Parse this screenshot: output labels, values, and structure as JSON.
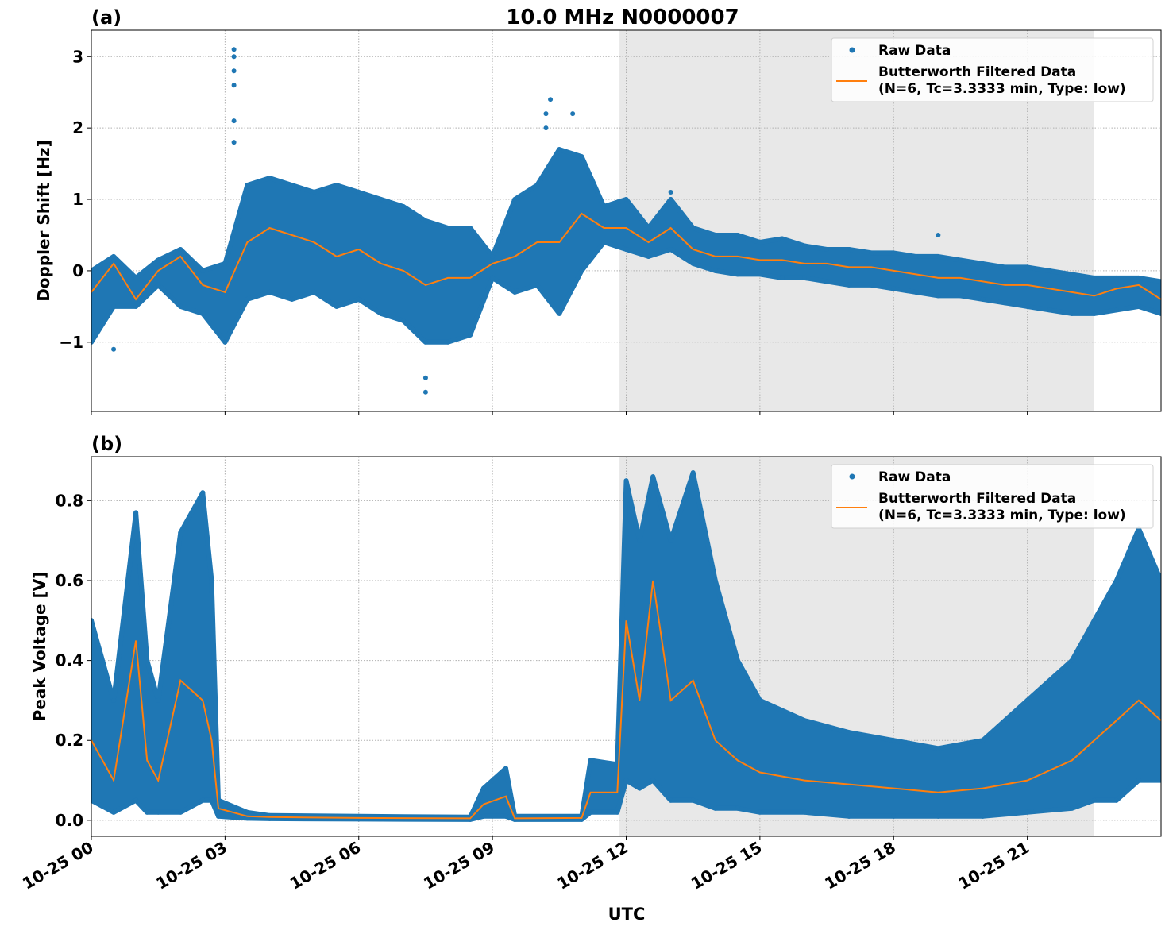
{
  "title": "10.0 MHz N0000007",
  "xlabel": "UTC",
  "x_tick_labels": [
    "10-25 00",
    "10-25 03",
    "10-25 06",
    "10-25 09",
    "10-25 12",
    "10-25 15",
    "10-25 18",
    "10-25 21"
  ],
  "colors": {
    "raw": "#1f77b4",
    "filtered": "#ff7f0e",
    "shade": "#e8e8e8"
  },
  "chart_data": [
    {
      "type": "scatter+line",
      "panel_label": "(a)",
      "ylabel": "Doppler Shift [Hz]",
      "xlim_hours": [
        0,
        24
      ],
      "ylim": [
        -1.97,
        3.37
      ],
      "y_ticks": [
        -1,
        0,
        1,
        2,
        3
      ],
      "y_tick_labels": [
        "−1",
        "0",
        "1",
        "2",
        "3"
      ],
      "grid": true,
      "shaded_span_hours": [
        11.85,
        22.5
      ],
      "legend": {
        "position": "top-right",
        "raw": "Raw Data",
        "filtered_line1": "Butterworth Filtered Data",
        "filtered_line2": "(N=6, Tc=3.3333 min, Type: low)"
      },
      "x_hours": [
        0,
        0.5,
        1,
        1.5,
        2,
        2.5,
        3,
        3.5,
        4,
        4.5,
        5,
        5.5,
        6,
        6.5,
        7,
        7.5,
        8,
        8.5,
        9,
        9.5,
        10,
        10.5,
        11,
        11.5,
        12,
        12.5,
        13,
        13.5,
        14,
        14.5,
        15,
        15.5,
        16,
        16.5,
        17,
        17.5,
        18,
        18.5,
        19,
        19.5,
        20,
        20.5,
        21,
        21.5,
        22,
        22.5,
        23,
        23.5,
        24
      ],
      "filtered": [
        -0.3,
        0.1,
        -0.4,
        0.0,
        0.2,
        -0.2,
        -0.3,
        0.4,
        0.6,
        0.5,
        0.4,
        0.2,
        0.3,
        0.1,
        0.0,
        -0.2,
        -0.1,
        -0.1,
        0.1,
        0.2,
        0.4,
        0.4,
        0.8,
        0.6,
        0.6,
        0.4,
        0.6,
        0.3,
        0.2,
        0.2,
        0.15,
        0.15,
        0.1,
        0.1,
        0.05,
        0.05,
        0.0,
        -0.05,
        -0.1,
        -0.1,
        -0.15,
        -0.2,
        -0.2,
        -0.25,
        -0.3,
        -0.35,
        -0.25,
        -0.2,
        -0.4
      ],
      "raw_low": [
        -1.0,
        -0.5,
        -0.5,
        -0.2,
        -0.5,
        -0.6,
        -1.0,
        -0.4,
        -0.3,
        -0.4,
        -0.3,
        -0.5,
        -0.4,
        -0.6,
        -0.7,
        -1.0,
        -1.0,
        -0.9,
        -0.1,
        -0.3,
        -0.2,
        -0.6,
        0.0,
        0.4,
        0.3,
        0.2,
        0.3,
        0.1,
        0.0,
        -0.05,
        -0.05,
        -0.1,
        -0.1,
        -0.15,
        -0.2,
        -0.2,
        -0.25,
        -0.3,
        -0.35,
        -0.35,
        -0.4,
        -0.45,
        -0.5,
        -0.55,
        -0.6,
        -0.6,
        -0.55,
        -0.5,
        -0.6
      ],
      "raw_high": [
        0.0,
        0.2,
        -0.1,
        0.15,
        0.3,
        0.0,
        0.1,
        1.2,
        1.3,
        1.2,
        1.1,
        1.2,
        1.1,
        1.0,
        0.9,
        0.7,
        0.6,
        0.6,
        0.2,
        1.0,
        1.2,
        1.7,
        1.6,
        0.9,
        1.0,
        0.6,
        1.0,
        0.6,
        0.5,
        0.5,
        0.4,
        0.45,
        0.35,
        0.3,
        0.3,
        0.25,
        0.25,
        0.2,
        0.2,
        0.15,
        0.1,
        0.05,
        0.05,
        0.0,
        -0.05,
        -0.1,
        -0.1,
        -0.1,
        -0.15
      ],
      "raw_outliers": [
        [
          3.2,
          3.1
        ],
        [
          3.2,
          3.0
        ],
        [
          3.2,
          2.8
        ],
        [
          3.2,
          2.6
        ],
        [
          3.2,
          2.1
        ],
        [
          3.2,
          1.8
        ],
        [
          7.5,
          -1.7
        ],
        [
          7.5,
          -1.5
        ],
        [
          10.3,
          2.4
        ],
        [
          10.2,
          2.2
        ],
        [
          10.8,
          2.2
        ],
        [
          10.2,
          2.0
        ],
        [
          0.5,
          -1.1
        ],
        [
          13.0,
          1.1
        ],
        [
          19.0,
          0.5
        ]
      ]
    },
    {
      "type": "scatter+line",
      "panel_label": "(b)",
      "ylabel": "Peak Voltage [V]",
      "xlim_hours": [
        0,
        24
      ],
      "ylim": [
        -0.04,
        0.91
      ],
      "y_ticks": [
        0,
        0.2,
        0.4,
        0.6,
        0.8
      ],
      "y_tick_labels": [
        "0.0",
        "0.2",
        "0.4",
        "0.6",
        "0.8"
      ],
      "grid": true,
      "shaded_span_hours": [
        11.85,
        22.5
      ],
      "legend": {
        "position": "top-right",
        "raw": "Raw Data",
        "filtered_line1": "Butterworth Filtered Data",
        "filtered_line2": "(N=6, Tc=3.3333 min, Type: low)"
      },
      "x_hours": [
        0,
        0.5,
        1,
        1.25,
        1.5,
        2,
        2.5,
        2.7,
        2.85,
        3.5,
        4,
        6,
        8.5,
        8.8,
        9.3,
        9.5,
        11,
        11.2,
        11.8,
        12,
        12.3,
        12.6,
        13,
        13.5,
        14,
        14.5,
        15,
        16,
        17,
        18,
        19,
        20,
        21,
        22,
        22.5,
        23,
        23.5,
        24
      ],
      "filtered": [
        0.2,
        0.1,
        0.45,
        0.15,
        0.1,
        0.35,
        0.3,
        0.2,
        0.03,
        0.01,
        0.008,
        0.006,
        0.005,
        0.04,
        0.06,
        0.005,
        0.006,
        0.07,
        0.07,
        0.5,
        0.3,
        0.6,
        0.3,
        0.35,
        0.2,
        0.15,
        0.12,
        0.1,
        0.09,
        0.08,
        0.07,
        0.08,
        0.1,
        0.15,
        0.2,
        0.25,
        0.3,
        0.25
      ],
      "raw_low": [
        0.05,
        0.02,
        0.05,
        0.02,
        0.02,
        0.02,
        0.05,
        0.05,
        0.01,
        0.005,
        0.004,
        0.003,
        0.002,
        0.01,
        0.01,
        0.002,
        0.002,
        0.02,
        0.02,
        0.1,
        0.08,
        0.1,
        0.05,
        0.05,
        0.03,
        0.03,
        0.02,
        0.02,
        0.01,
        0.01,
        0.01,
        0.01,
        0.02,
        0.03,
        0.05,
        0.05,
        0.1,
        0.1
      ],
      "raw_high": [
        0.5,
        0.3,
        0.77,
        0.4,
        0.3,
        0.72,
        0.82,
        0.6,
        0.05,
        0.02,
        0.012,
        0.01,
        0.008,
        0.08,
        0.13,
        0.01,
        0.01,
        0.15,
        0.14,
        0.85,
        0.7,
        0.86,
        0.7,
        0.87,
        0.6,
        0.4,
        0.3,
        0.25,
        0.22,
        0.2,
        0.18,
        0.2,
        0.3,
        0.4,
        0.5,
        0.6,
        0.73,
        0.6
      ],
      "raw_outliers": []
    }
  ]
}
